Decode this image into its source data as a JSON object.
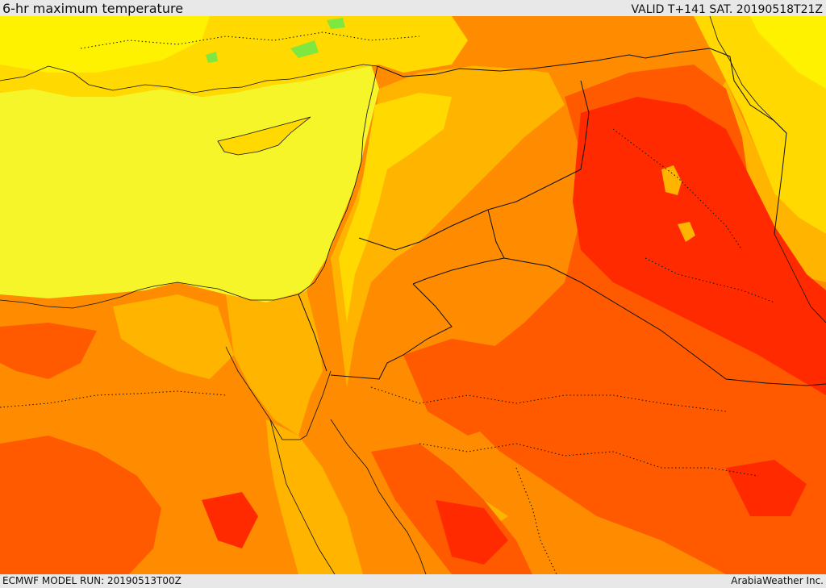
{
  "header": {
    "title": "6-hr maximum temperature",
    "valid_time": "VALID T+141 SAT. 20190518T21Z"
  },
  "footer": {
    "model_run": "ECMWF MODEL RUN: 20190513T00Z",
    "credit": "ArabiaWeather Inc."
  },
  "palette": {
    "cool_green": "#7ee840",
    "light_yellow": "#f6f52a",
    "yellow": "#fff200",
    "gold": "#ffd900",
    "amber": "#ffb400",
    "orange": "#ff8c00",
    "dark_orange": "#ff5a00",
    "red": "#ff2a00",
    "border_color": "#111111"
  }
}
